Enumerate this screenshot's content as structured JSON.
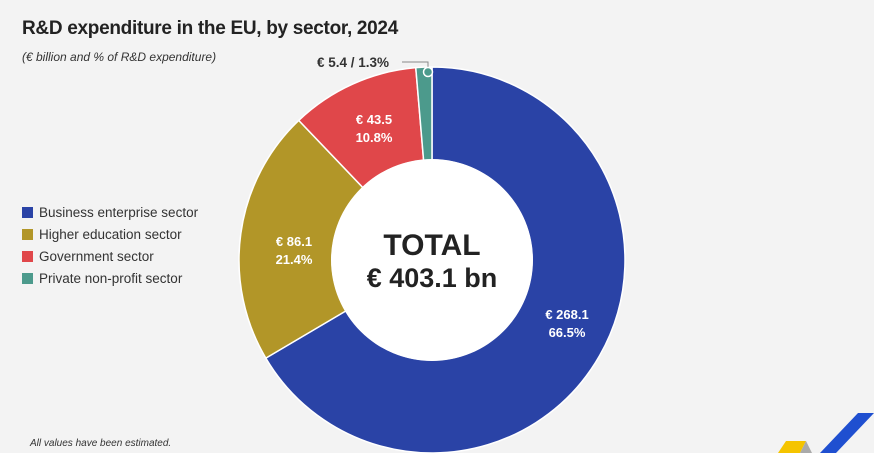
{
  "chart_data": {
    "type": "pie",
    "variant": "donut",
    "title": "R&D expenditure in the EU, by sector, 2024",
    "subtitle": "(€ billion and % of R&D expenditure)",
    "center_label": {
      "line1": "TOTAL",
      "line2": "€ 403.1 bn"
    },
    "legend_position": "left",
    "slices": [
      {
        "name": "Business enterprise sector",
        "value": 268.1,
        "percent": 66.5,
        "value_label": "€ 268.1",
        "percent_label": "66.5%",
        "color": "#2a43a6"
      },
      {
        "name": "Higher education sector",
        "value": 86.1,
        "percent": 21.4,
        "value_label": "€ 86.1",
        "percent_label": "21.4%",
        "color": "#b29628"
      },
      {
        "name": "Government sector",
        "value": 43.5,
        "percent": 10.8,
        "value_label": "€ 43.5",
        "percent_label": "10.8%",
        "color": "#e0474a"
      },
      {
        "name": "Private non-profit sector",
        "value": 5.4,
        "percent": 1.3,
        "value_label": "€ 5.4 / 1.3%",
        "color": "#4c9a8c"
      }
    ],
    "footnote": "All values have been estimated."
  },
  "logo_colors": {
    "yellow": "#f5c400",
    "blue": "#1f4fd0"
  }
}
